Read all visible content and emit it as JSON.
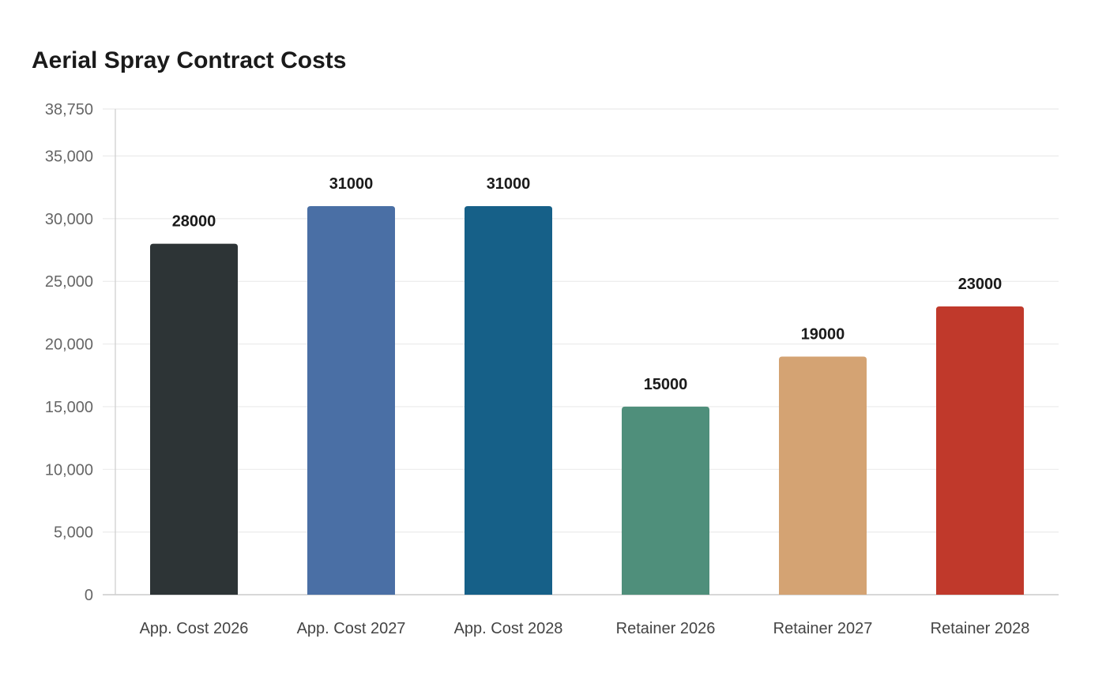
{
  "chart_data": {
    "type": "bar",
    "title": "Aerial Spray Contract Costs",
    "xlabel": "",
    "ylabel": "",
    "categories": [
      "App. Cost 2026",
      "App. Cost 2027",
      "App. Cost 2028",
      "Retainer 2026",
      "Retainer 2027",
      "Retainer 2028"
    ],
    "values": [
      28000,
      31000,
      31000,
      15000,
      19000,
      23000
    ],
    "colors": [
      "#2d3436",
      "#4a6fa5",
      "#166088",
      "#4f8f7b",
      "#d4a373",
      "#c0392b"
    ],
    "ylim": [
      0,
      38750
    ],
    "yticks": [
      0,
      5000,
      10000,
      15000,
      20000,
      25000,
      30000,
      35000,
      38750
    ],
    "ytick_labels": [
      "0",
      "5,000",
      "10,000",
      "15,000",
      "20,000",
      "25,000",
      "30,000",
      "35,000",
      "38,750"
    ],
    "grid": true,
    "data_labels": true
  }
}
